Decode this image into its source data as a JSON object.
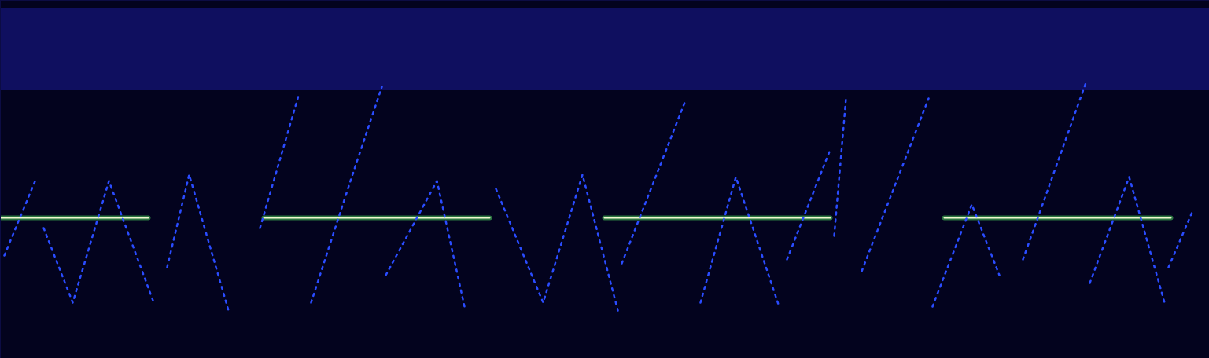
{
  "chart_data": {
    "type": "spectrogram",
    "xlim": [
      0,
      1537
    ],
    "ylim": [
      0,
      456
    ],
    "tick_labels": false,
    "grid": false,
    "color": "#03031e",
    "noise_band": {
      "y": [
        341,
        446
      ],
      "color": "#1a1a96"
    },
    "series": [
      {
        "type": "line",
        "line_style": "solid",
        "color": "#f0f8d0",
        "x": [
          0,
          188
        ],
        "values": [
          179,
          179
        ]
      },
      {
        "type": "line",
        "line_style": "solid",
        "color": "#f0f8d0",
        "x": [
          335,
          622
        ],
        "values": [
          179,
          179
        ]
      },
      {
        "type": "line",
        "line_style": "solid",
        "color": "#f0f8d0",
        "x": [
          768,
          1055
        ],
        "values": [
          179,
          179
        ]
      },
      {
        "type": "line",
        "line_style": "solid",
        "color": "#f0f8d0",
        "x": [
          1200,
          1488
        ],
        "values": [
          179,
          179
        ]
      },
      {
        "type": "line",
        "line_style": "dotted",
        "color": "#2a4cff",
        "x": [
          5,
          45
        ],
        "values": [
          131,
          228
        ]
      },
      {
        "type": "line",
        "line_style": "dotted",
        "color": "#2a4cff",
        "x": [
          55,
          92,
          138,
          195
        ],
        "values": [
          166,
          71,
          226,
          71
        ]
      },
      {
        "type": "line",
        "line_style": "dotted",
        "color": "#2a4cff",
        "x": [
          212,
          240,
          290
        ],
        "values": [
          116,
          234,
          61
        ]
      },
      {
        "type": "line",
        "line_style": "dotted",
        "color": "#2a4cff",
        "x": [
          330,
          380
        ],
        "values": [
          166,
          338
        ]
      },
      {
        "type": "line",
        "line_style": "dotted",
        "color": "#2a4cff",
        "x": [
          395,
          445,
          485
        ],
        "values": [
          71,
          226,
          346
        ]
      },
      {
        "type": "line",
        "line_style": "dotted",
        "color": "#2a4cff",
        "x": [
          490,
          555,
          590
        ],
        "values": [
          106,
          226,
          66
        ]
      },
      {
        "type": "line",
        "line_style": "dotted",
        "color": "#2a4cff",
        "x": [
          630,
          690,
          740,
          785
        ],
        "values": [
          216,
          71,
          234,
          61
        ]
      },
      {
        "type": "line",
        "line_style": "dotted",
        "color": "#2a4cff",
        "x": [
          790,
          870
        ],
        "values": [
          121,
          326
        ]
      },
      {
        "type": "line",
        "line_style": "dotted",
        "color": "#2a4cff",
        "x": [
          890,
          935,
          990
        ],
        "values": [
          71,
          231,
          66
        ]
      },
      {
        "type": "line",
        "line_style": "dotted",
        "color": "#2a4cff",
        "x": [
          1000,
          1055
        ],
        "values": [
          126,
          266
        ]
      },
      {
        "type": "line",
        "line_style": "dotted",
        "color": "#2a4cff",
        "x": [
          1060,
          1075
        ],
        "values": [
          156,
          331
        ]
      },
      {
        "type": "line",
        "line_style": "dotted",
        "color": "#2a4cff",
        "x": [
          1095,
          1180
        ],
        "values": [
          111,
          331
        ]
      },
      {
        "type": "line",
        "line_style": "dotted",
        "color": "#2a4cff",
        "x": [
          1185,
          1235,
          1270
        ],
        "values": [
          66,
          196,
          106
        ]
      },
      {
        "type": "line",
        "line_style": "dotted",
        "color": "#2a4cff",
        "x": [
          1300,
          1380
        ],
        "values": [
          126,
          351
        ]
      },
      {
        "type": "line",
        "line_style": "dotted",
        "color": "#2a4cff",
        "x": [
          1385,
          1435,
          1480
        ],
        "values": [
          96,
          231,
          71
        ]
      },
      {
        "type": "line",
        "line_style": "dotted",
        "color": "#2a4cff",
        "x": [
          1485,
          1515
        ],
        "values": [
          116,
          186
        ]
      }
    ]
  }
}
